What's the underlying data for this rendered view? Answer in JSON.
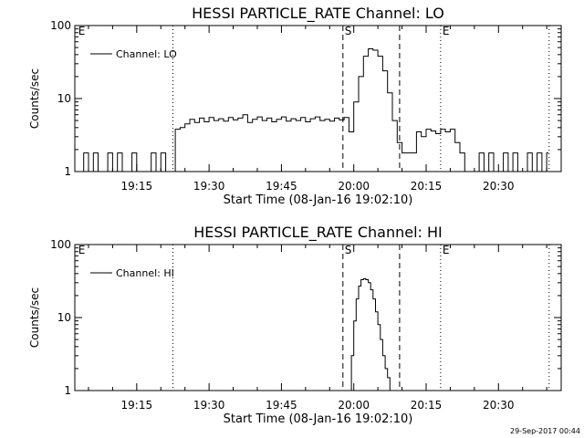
{
  "chart_data": [
    {
      "type": "line",
      "title": "HESSI PARTICLE_RATE Channel: LO",
      "xlabel": "Start Time (08-Jan-16 19:02:10)",
      "ylabel": "Counts/sec",
      "yscale": "log",
      "ylim": [
        1,
        100
      ],
      "xlim": [
        "19:02:10",
        "20:43:00"
      ],
      "xticks": [
        "19:15",
        "19:30",
        "19:45",
        "20:00",
        "20:15",
        "20:30"
      ],
      "yticks": [
        "1",
        "10",
        "100"
      ],
      "legend": {
        "label": "Channel: LO",
        "position": "top-left"
      },
      "markers": [
        {
          "time": "19:02:30",
          "style": "label",
          "text": "E"
        },
        {
          "time": "19:22:30",
          "style": "dotted",
          "text": ""
        },
        {
          "time": "19:57:45",
          "style": "dashed",
          "text": "S"
        },
        {
          "time": "20:09:30",
          "style": "dashed",
          "text": ""
        },
        {
          "time": "20:18:00",
          "style": "dotted",
          "text": "E"
        },
        {
          "time": "20:40:30",
          "style": "dotted",
          "text": ""
        }
      ],
      "series": [
        {
          "name": "Channel: LO",
          "x": [
            "19:03:00",
            "19:04:00",
            "19:05:00",
            "19:06:00",
            "19:07:00",
            "19:08:00",
            "19:09:00",
            "19:10:00",
            "19:11:00",
            "19:12:00",
            "19:13:00",
            "19:14:00",
            "19:15:00",
            "19:16:00",
            "19:17:00",
            "19:18:00",
            "19:19:00",
            "19:20:00",
            "19:21:00",
            "19:22:30",
            "19:23:00",
            "19:24:00",
            "19:25:00",
            "19:26:00",
            "19:27:00",
            "19:28:00",
            "19:29:00",
            "19:30:00",
            "19:31:00",
            "19:32:00",
            "19:33:00",
            "19:34:00",
            "19:35:00",
            "19:36:00",
            "19:37:00",
            "19:38:00",
            "19:39:00",
            "19:40:00",
            "19:41:00",
            "19:42:00",
            "19:43:00",
            "19:44:00",
            "19:45:00",
            "19:46:00",
            "19:47:00",
            "19:48:00",
            "19:49:00",
            "19:50:00",
            "19:51:00",
            "19:52:00",
            "19:53:00",
            "19:54:00",
            "19:55:00",
            "19:56:00",
            "19:57:00",
            "19:58:00",
            "19:59:00",
            "20:00:00",
            "20:01:00",
            "20:02:00",
            "20:03:00",
            "20:04:00",
            "20:05:00",
            "20:06:00",
            "20:07:00",
            "20:08:00",
            "20:09:00",
            "20:10:00",
            "20:11:00",
            "20:12:00",
            "20:13:00",
            "20:14:00",
            "20:15:00",
            "20:16:00",
            "20:17:00",
            "20:18:00",
            "20:19:00",
            "20:20:00",
            "20:21:00",
            "20:22:00",
            "20:23:00",
            "20:24:00",
            "20:25:00",
            "20:26:00",
            "20:27:00",
            "20:28:00",
            "20:29:00",
            "20:30:00",
            "20:31:00",
            "20:32:00",
            "20:33:00",
            "20:34:00",
            "20:35:00",
            "20:36:00",
            "20:37:00",
            "20:38:00",
            "20:39:00",
            "20:40:00"
          ],
          "y": [
            1.0,
            1.8,
            1.0,
            1.8,
            1.0,
            1.0,
            1.8,
            1.0,
            1.8,
            1.0,
            1.0,
            1.8,
            1.0,
            1.0,
            1.0,
            1.8,
            1.0,
            1.8,
            1.0,
            1.0,
            3.8,
            4.0,
            4.5,
            5.2,
            4.7,
            5.4,
            4.8,
            5.5,
            5.0,
            5.3,
            4.9,
            5.5,
            5.1,
            5.4,
            6.0,
            4.7,
            5.2,
            5.6,
            5.0,
            5.4,
            4.8,
            5.2,
            5.6,
            4.9,
            5.3,
            5.0,
            5.5,
            4.8,
            5.3,
            5.6,
            5.0,
            5.2,
            4.9,
            5.4,
            5.1,
            5.5,
            3.5,
            9.0,
            20,
            38,
            48,
            46,
            38,
            24,
            12,
            5.0,
            2.5,
            1.8,
            1.8,
            1.8,
            3.5,
            3.0,
            3.8,
            3.6,
            3.3,
            3.8,
            3.5,
            3.8,
            2.5,
            1.8,
            1.0,
            1.0,
            1.0,
            1.8,
            1.0,
            1.8,
            1.0,
            1.0,
            1.8,
            1.0,
            1.8,
            1.0,
            1.0,
            1.8,
            1.0,
            1.8,
            1.0,
            1.8
          ]
        }
      ]
    },
    {
      "type": "line",
      "title": "HESSI PARTICLE_RATE Channel: HI",
      "xlabel": "Start Time (08-Jan-16 19:02:10)",
      "ylabel": "Counts/sec",
      "yscale": "log",
      "ylim": [
        1,
        100
      ],
      "xlim": [
        "19:02:10",
        "20:43:00"
      ],
      "xticks": [
        "19:15",
        "19:30",
        "19:45",
        "20:00",
        "20:15",
        "20:30"
      ],
      "yticks": [
        "1",
        "10",
        "100"
      ],
      "legend": {
        "label": "Channel: HI",
        "position": "top-left"
      },
      "markers": [
        {
          "time": "19:02:30",
          "style": "label",
          "text": "E"
        },
        {
          "time": "19:22:30",
          "style": "dotted",
          "text": ""
        },
        {
          "time": "19:57:45",
          "style": "dashed",
          "text": "S"
        },
        {
          "time": "20:09:30",
          "style": "dashed",
          "text": ""
        },
        {
          "time": "20:18:00",
          "style": "dotted",
          "text": "E"
        },
        {
          "time": "20:40:30",
          "style": "dotted",
          "text": ""
        }
      ],
      "series": [
        {
          "name": "Channel: HI",
          "x": [
            "19:59:00",
            "19:59:30",
            "20:00:00",
            "20:00:30",
            "20:01:00",
            "20:01:30",
            "20:02:00",
            "20:02:30",
            "20:03:00",
            "20:03:30",
            "20:04:00",
            "20:04:30",
            "20:05:00",
            "20:05:30",
            "20:06:00",
            "20:06:30",
            "20:07:00",
            "20:07:30"
          ],
          "y": [
            1.0,
            3.0,
            9.0,
            18,
            27,
            33,
            34,
            33,
            30,
            24,
            18,
            12,
            8,
            5,
            3,
            2,
            1.5,
            1.0
          ]
        }
      ]
    }
  ],
  "footer": {
    "timestamp": "29-Sep-2017 00:44"
  }
}
